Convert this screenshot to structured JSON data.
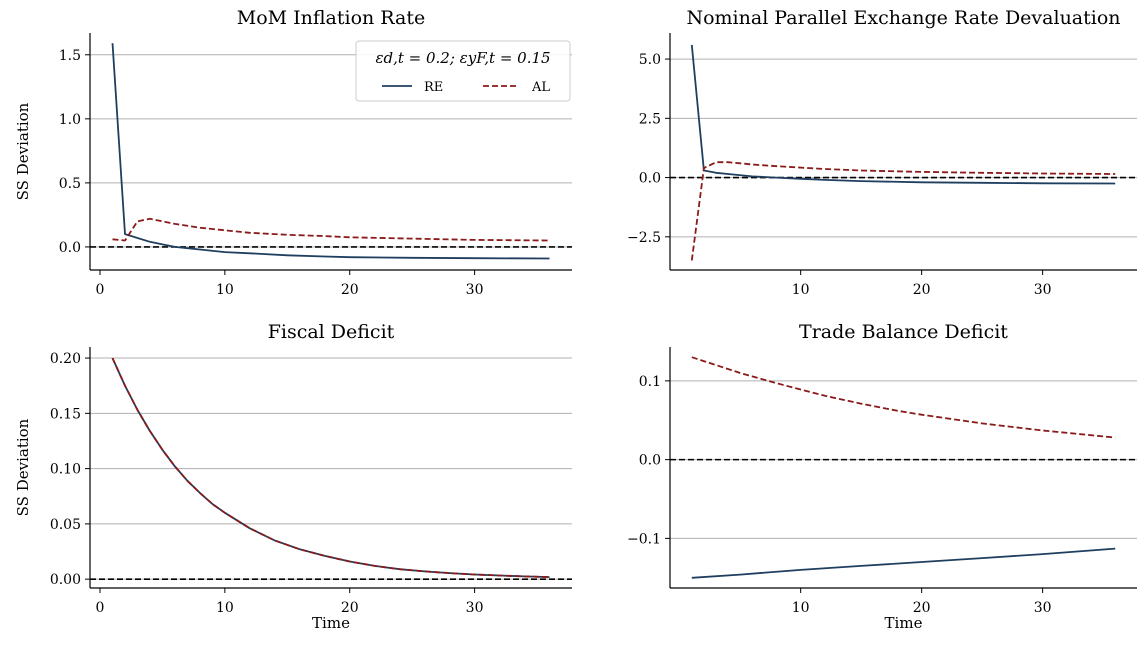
{
  "chart_data": [
    {
      "type": "line",
      "title": "MoM Inflation Rate",
      "ylabel": "SS Deviation",
      "xlabel": "",
      "xlim": [
        -0.8,
        37.8
      ],
      "ylim": [
        -0.18,
        1.67
      ],
      "xticks": [
        0,
        10,
        20,
        30
      ],
      "yticks": [
        0.0,
        0.5,
        1.0,
        1.5
      ],
      "ytick_labels": [
        "0.0",
        "0.5",
        "1.0",
        "1.5"
      ],
      "grid": "horizontal",
      "zero_line": 0,
      "legend": {
        "placement": "top-right",
        "title": "εd,t = 0.2; εyF,t = 0.15",
        "entries": [
          "RE",
          "AL"
        ]
      },
      "series": [
        {
          "name": "RE",
          "style": "solid",
          "color": "#1f3f5f",
          "x": [
            1,
            2,
            3,
            4,
            5,
            6,
            7,
            8,
            10,
            12,
            15,
            18,
            20,
            25,
            30,
            36
          ],
          "y": [
            1.59,
            0.1,
            0.07,
            0.04,
            0.02,
            0.0,
            -0.01,
            -0.02,
            -0.04,
            -0.05,
            -0.065,
            -0.075,
            -0.08,
            -0.085,
            -0.088,
            -0.09
          ]
        },
        {
          "name": "AL",
          "style": "dashed",
          "color": "#8b1a1a",
          "x": [
            1,
            2,
            3,
            4,
            5,
            6,
            8,
            10,
            12,
            15,
            18,
            20,
            25,
            30,
            36
          ],
          "y": [
            0.06,
            0.05,
            0.2,
            0.22,
            0.2,
            0.18,
            0.15,
            0.13,
            0.11,
            0.095,
            0.085,
            0.075,
            0.065,
            0.055,
            0.05
          ]
        }
      ]
    },
    {
      "type": "line",
      "title": "Nominal Parallel Exchange Rate Devaluation",
      "ylabel": "",
      "xlabel": "",
      "xlim": [
        -0.8,
        37.8
      ],
      "ylim": [
        -3.9,
        6.1
      ],
      "xticks": [
        10,
        20,
        30
      ],
      "yticks": [
        -2.5,
        0.0,
        2.5,
        5.0
      ],
      "ytick_labels": [
        "−2.5",
        "0.0",
        "2.5",
        "5.0"
      ],
      "grid": "horizontal",
      "zero_line": 0,
      "series": [
        {
          "name": "RE",
          "style": "solid",
          "color": "#1f3f5f",
          "x": [
            1,
            2,
            3,
            4,
            6,
            8,
            10,
            12,
            15,
            20,
            25,
            30,
            36
          ],
          "y": [
            5.6,
            0.3,
            0.2,
            0.15,
            0.05,
            0.0,
            -0.05,
            -0.1,
            -0.15,
            -0.2,
            -0.22,
            -0.24,
            -0.25
          ]
        },
        {
          "name": "AL",
          "style": "dashed",
          "color": "#8b1a1a",
          "x": [
            1,
            2,
            3,
            4,
            5,
            6,
            8,
            10,
            12,
            15,
            20,
            25,
            30,
            36
          ],
          "y": [
            -3.5,
            0.4,
            0.65,
            0.65,
            0.6,
            0.55,
            0.48,
            0.42,
            0.36,
            0.3,
            0.24,
            0.2,
            0.17,
            0.15
          ]
        }
      ]
    },
    {
      "type": "line",
      "title": "Fiscal Deficit",
      "ylabel": "SS Deviation",
      "xlabel": "Time",
      "xlim": [
        -0.8,
        37.8
      ],
      "ylim": [
        -0.008,
        0.21
      ],
      "xticks": [
        0,
        10,
        20,
        30
      ],
      "yticks": [
        0.0,
        0.05,
        0.1,
        0.15,
        0.2
      ],
      "ytick_labels": [
        "0.00",
        "0.05",
        "0.10",
        "0.15",
        "0.20"
      ],
      "grid": "horizontal",
      "zero_line": 0,
      "series": [
        {
          "name": "RE",
          "style": "solid",
          "color": "#1f3f5f",
          "x": [
            1,
            2,
            3,
            4,
            5,
            6,
            7,
            8,
            9,
            10,
            12,
            14,
            16,
            18,
            20,
            22,
            24,
            26,
            28,
            30,
            32,
            34,
            36
          ],
          "y": [
            0.2,
            0.175,
            0.153,
            0.134,
            0.117,
            0.102,
            0.089,
            0.078,
            0.068,
            0.06,
            0.046,
            0.035,
            0.027,
            0.021,
            0.016,
            0.012,
            0.009,
            0.007,
            0.0055,
            0.0042,
            0.0033,
            0.0025,
            0.0019
          ]
        },
        {
          "name": "AL",
          "style": "dashed",
          "color": "#8b1a1a",
          "x": [
            1,
            2,
            3,
            4,
            5,
            6,
            7,
            8,
            9,
            10,
            12,
            14,
            16,
            18,
            20,
            22,
            24,
            26,
            28,
            30,
            32,
            34,
            36
          ],
          "y": [
            0.2,
            0.175,
            0.153,
            0.134,
            0.117,
            0.102,
            0.089,
            0.078,
            0.068,
            0.06,
            0.046,
            0.035,
            0.027,
            0.021,
            0.016,
            0.012,
            0.009,
            0.007,
            0.0055,
            0.0042,
            0.0033,
            0.0025,
            0.0019
          ]
        }
      ]
    },
    {
      "type": "line",
      "title": "Trade Balance Deficit",
      "ylabel": "",
      "xlabel": "Time",
      "xlim": [
        -0.8,
        37.8
      ],
      "ylim": [
        -0.163,
        0.143
      ],
      "xticks": [
        10,
        20,
        30
      ],
      "yticks": [
        -0.1,
        0.0,
        0.1
      ],
      "ytick_labels": [
        "−0.1",
        "0.0",
        "0.1"
      ],
      "grid": "horizontal",
      "zero_line": 0,
      "series": [
        {
          "name": "RE",
          "style": "solid",
          "color": "#1f3f5f",
          "x": [
            1,
            5,
            10,
            15,
            20,
            25,
            30,
            36
          ],
          "y": [
            -0.15,
            -0.146,
            -0.14,
            -0.135,
            -0.13,
            -0.125,
            -0.12,
            -0.113
          ]
        },
        {
          "name": "AL",
          "style": "dashed",
          "color": "#8b1a1a",
          "x": [
            1,
            3,
            5,
            8,
            10,
            12,
            15,
            18,
            20,
            25,
            30,
            36
          ],
          "y": [
            0.13,
            0.12,
            0.11,
            0.097,
            0.089,
            0.081,
            0.071,
            0.062,
            0.057,
            0.046,
            0.037,
            0.028
          ]
        }
      ]
    }
  ]
}
